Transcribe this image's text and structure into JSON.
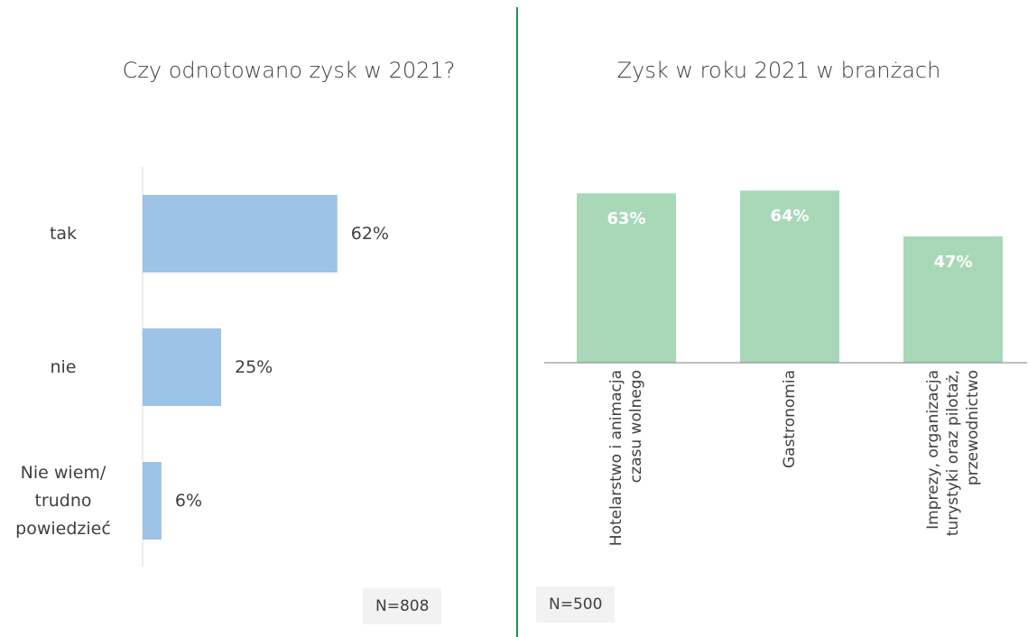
{
  "chart_data": [
    {
      "type": "hbar",
      "title": "Czy odnotowano zysk w 2021?",
      "categories": [
        "tak",
        "nie",
        "Nie wiem/\ntrudno\npowiedzieć"
      ],
      "values": [
        62,
        25,
        6
      ],
      "value_labels": [
        "62%",
        "25%",
        "6%"
      ],
      "color": "#9dc3e6",
      "xlim": [
        0,
        100
      ],
      "note": "N=808"
    },
    {
      "type": "bar",
      "title": "Zysk w roku 2021 w branżach",
      "categories": [
        "Hotelarstwo i animacja\nczasu wolnego",
        "Gastronomia",
        "Imprezy, organizacja\nturystyki oraz pilotaż,\nprzewodnictwo"
      ],
      "values": [
        63,
        64,
        47
      ],
      "value_labels": [
        "63%",
        "64%",
        "47%"
      ],
      "color": "#a9d8b8",
      "ylim": [
        0,
        100
      ],
      "note": "N=500"
    }
  ]
}
